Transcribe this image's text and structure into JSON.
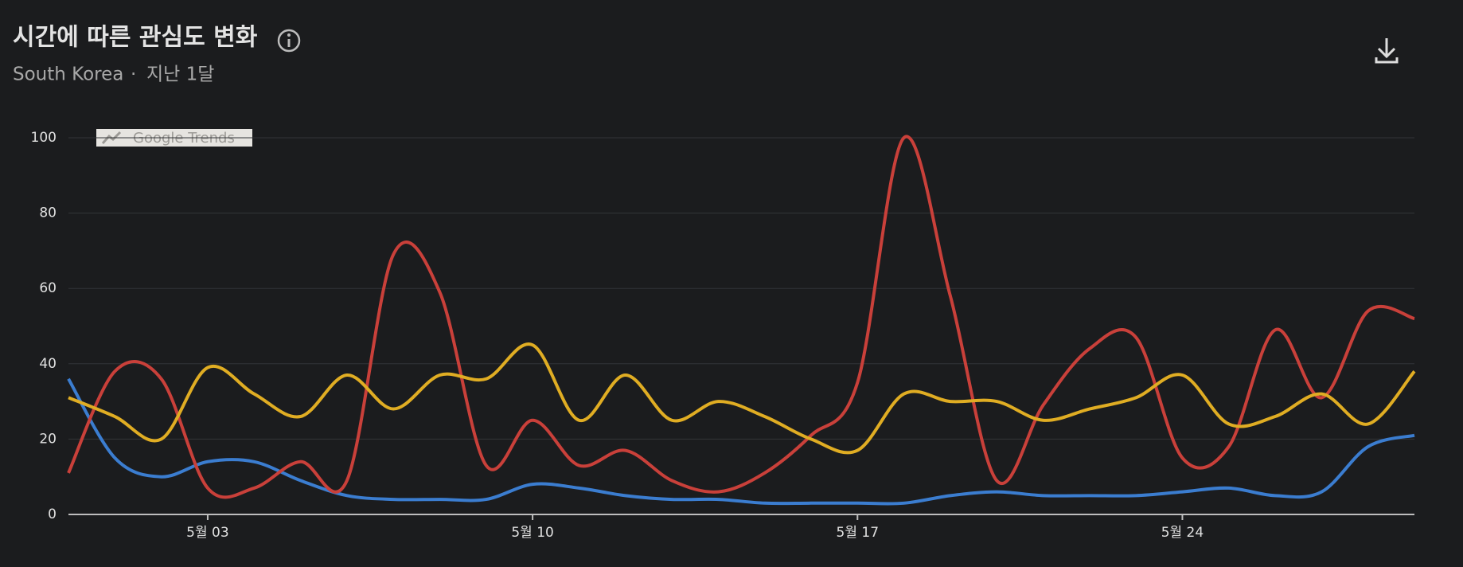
{
  "chart_data": {
    "type": "line",
    "title": "시간에 따른 관심도 변화",
    "subtitle": {
      "region": "South Korea",
      "separator": "·",
      "period": "지난 1달"
    },
    "watermark": "Google Trends",
    "categories": [
      null,
      null,
      null,
      "5월 03",
      null,
      null,
      null,
      null,
      null,
      null,
      "5월 10",
      null,
      null,
      null,
      null,
      null,
      null,
      "5월 17",
      null,
      null,
      null,
      null,
      null,
      null,
      "5월 24",
      null,
      null,
      null,
      null,
      null
    ],
    "series": [
      {
        "color": "#3b7dd0",
        "values": [
          36,
          15,
          10,
          14,
          14,
          9,
          5,
          4,
          4,
          4,
          8,
          7,
          5,
          4,
          4,
          3,
          3,
          3,
          3,
          5,
          6,
          5,
          5,
          5,
          6,
          7,
          5,
          6,
          18,
          21
        ]
      },
      {
        "color": "#c9403a",
        "values": [
          11,
          38,
          36,
          7,
          7,
          14,
          9,
          69,
          59,
          13,
          25,
          13,
          17,
          9,
          6,
          11,
          21,
          35,
          100,
          58,
          9,
          29,
          44,
          47,
          15,
          18,
          49,
          31,
          54,
          52
        ]
      },
      {
        "color": "#e0ad23",
        "values": [
          31,
          26,
          20,
          39,
          32,
          26,
          37,
          28,
          37,
          36,
          45,
          25,
          37,
          25,
          30,
          26,
          20,
          17,
          32,
          30,
          30,
          25,
          28,
          31,
          37,
          24,
          26,
          32,
          24,
          38
        ]
      }
    ],
    "ylim": [
      0,
      100
    ],
    "yticks": [
      0,
      20,
      40,
      60,
      80,
      100
    ],
    "grid": true
  }
}
